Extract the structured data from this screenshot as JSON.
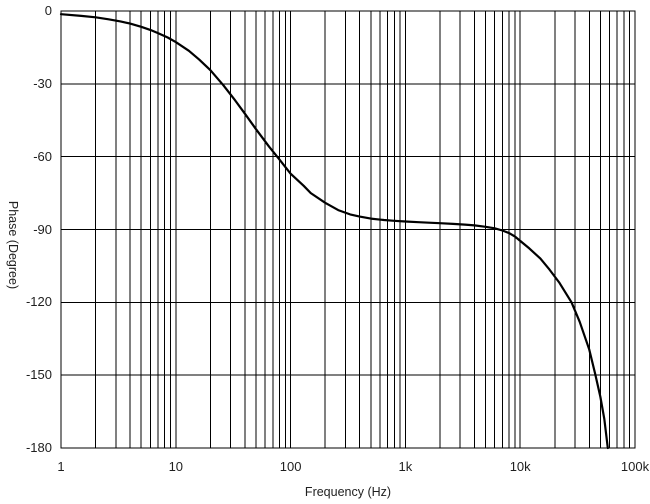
{
  "chart_data": {
    "type": "line",
    "title": "",
    "xlabel": "Frequency (Hz)",
    "ylabel": "Phase (Degree)",
    "x_scale": "log",
    "x_range": [
      1,
      100000
    ],
    "y_range": [
      -180,
      0
    ],
    "grid": {
      "vertical": "log minor gridlines at 2-9 of each decade plus decade lines",
      "horizontal": "every 30 degrees",
      "color": "#000000",
      "on": true
    },
    "legend_position": "none",
    "x_ticks": [
      {
        "v": 1,
        "label": "1"
      },
      {
        "v": 10,
        "label": "10"
      },
      {
        "v": 100,
        "label": "100"
      },
      {
        "v": 1000,
        "label": "1k"
      },
      {
        "v": 10000,
        "label": "10k"
      },
      {
        "v": 100000,
        "label": "100k"
      }
    ],
    "y_ticks": [
      {
        "v": 0,
        "label": "0"
      },
      {
        "v": -30,
        "label": "-30"
      },
      {
        "v": -60,
        "label": "-60"
      },
      {
        "v": -90,
        "label": "-90"
      },
      {
        "v": -120,
        "label": "-120"
      },
      {
        "v": -150,
        "label": "-150"
      },
      {
        "v": -180,
        "label": "-180"
      }
    ],
    "series": [
      {
        "name": "Phase",
        "color": "#000000",
        "points": [
          [
            1,
            -1.3
          ],
          [
            1.5,
            -2
          ],
          [
            2,
            -2.6
          ],
          [
            2.6,
            -3.4
          ],
          [
            3.3,
            -4.3
          ],
          [
            4,
            -5.2
          ],
          [
            5,
            -6.5
          ],
          [
            6,
            -7.8
          ],
          [
            7,
            -9.1
          ],
          [
            8.5,
            -10.9
          ],
          [
            10,
            -12.8
          ],
          [
            13,
            -16.4
          ],
          [
            16,
            -20
          ],
          [
            20,
            -24.4
          ],
          [
            26,
            -30.6
          ],
          [
            33,
            -36.9
          ],
          [
            40,
            -42.3
          ],
          [
            50,
            -48.7
          ],
          [
            65,
            -55.9
          ],
          [
            78,
            -60.5
          ],
          [
            100,
            -67
          ],
          [
            130,
            -72
          ],
          [
            150,
            -75
          ],
          [
            200,
            -79
          ],
          [
            260,
            -82
          ],
          [
            330,
            -83.8
          ],
          [
            400,
            -84.7
          ],
          [
            500,
            -85.5
          ],
          [
            650,
            -86.1
          ],
          [
            800,
            -86.4
          ],
          [
            1000,
            -86.7
          ],
          [
            1300,
            -87
          ],
          [
            1600,
            -87.2
          ],
          [
            2000,
            -87.4
          ],
          [
            2600,
            -87.7
          ],
          [
            3300,
            -88
          ],
          [
            4000,
            -88.3
          ],
          [
            5000,
            -88.9
          ],
          [
            6000,
            -89.5
          ],
          [
            7000,
            -90.4
          ],
          [
            8000,
            -91.5
          ],
          [
            9000,
            -92.9
          ],
          [
            10000,
            -94.7
          ],
          [
            12000,
            -97.8
          ],
          [
            15000,
            -102
          ],
          [
            18000,
            -106.5
          ],
          [
            22000,
            -112
          ],
          [
            28000,
            -120
          ],
          [
            33000,
            -128
          ],
          [
            40000,
            -139.5
          ],
          [
            45000,
            -149.5
          ],
          [
            50000,
            -159
          ],
          [
            54000,
            -168
          ],
          [
            58000,
            -180
          ]
        ]
      }
    ]
  },
  "colors": {
    "background": "#ffffff",
    "grid": "#000000",
    "border": "#000000",
    "curve": "#000000",
    "text": "#1f1f1f"
  }
}
